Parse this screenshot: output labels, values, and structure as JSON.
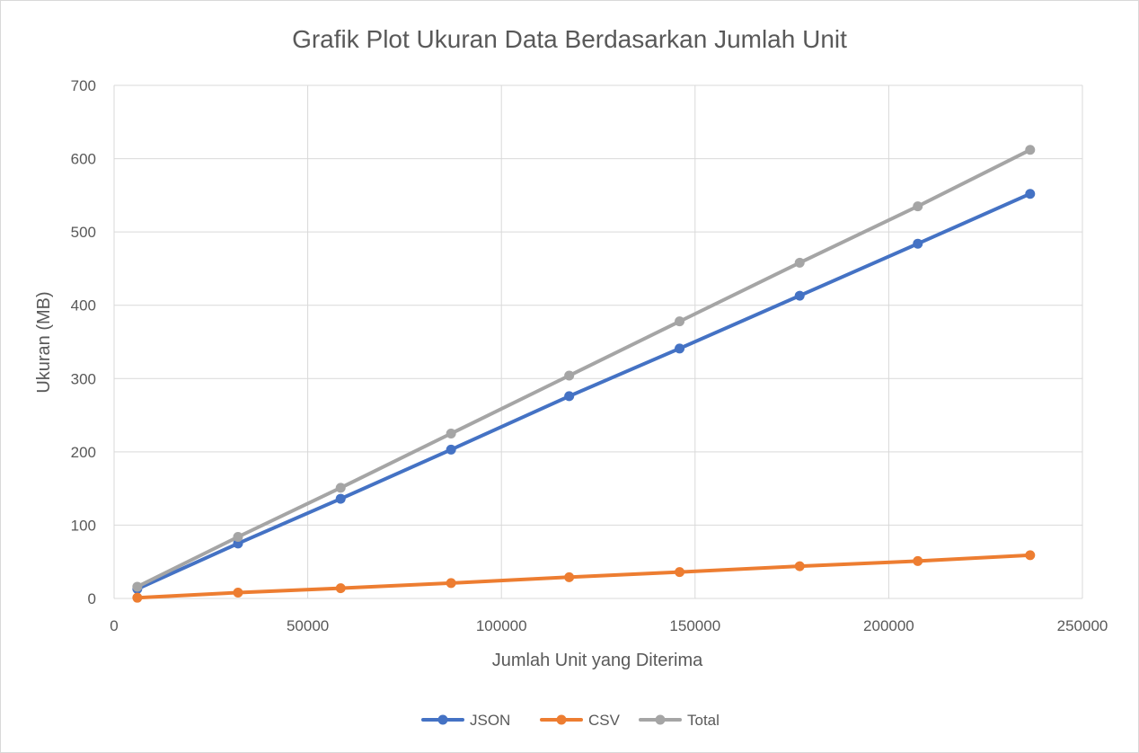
{
  "chart_data": {
    "type": "line",
    "title": "Grafik Plot Ukuran Data Berdasarkan Jumlah Unit",
    "xlabel": "Jumlah Unit yang Diterima",
    "ylabel": "Ukuran (MB)",
    "xlim": [
      0,
      250000
    ],
    "ylim": [
      0,
      700
    ],
    "xticks": [
      0,
      50000,
      100000,
      150000,
      200000,
      250000
    ],
    "yticks": [
      0,
      100,
      200,
      300,
      400,
      500,
      600,
      700
    ],
    "grid": true,
    "legend_position": "bottom",
    "x": [
      6000,
      32000,
      58500,
      87000,
      117500,
      146000,
      177000,
      207500,
      236500
    ],
    "series": [
      {
        "name": "JSON",
        "color": "#4472c4",
        "values": [
          13,
          75,
          136,
          203,
          276,
          341,
          413,
          484,
          552
        ]
      },
      {
        "name": "CSV",
        "color": "#ed7d31",
        "values": [
          1,
          8,
          14,
          21,
          29,
          36,
          44,
          51,
          59
        ]
      },
      {
        "name": "Total",
        "color": "#a5a5a5",
        "values": [
          16,
          84,
          151,
          225,
          304,
          378,
          458,
          535,
          612
        ]
      }
    ]
  }
}
